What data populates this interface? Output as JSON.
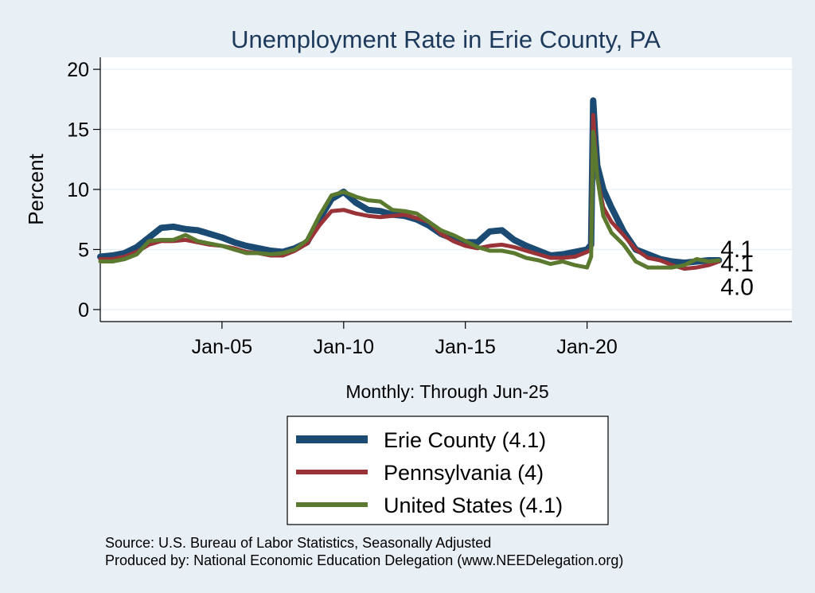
{
  "chart_data": {
    "type": "line",
    "title": "Unemployment Rate in Erie  County, PA",
    "ylabel": "Percent",
    "xlabel": "Monthly: Through Jun-25",
    "ylim": [
      -1,
      21
    ],
    "xlim": [
      "2000-01",
      "2028-06"
    ],
    "yticks": [
      0,
      5,
      10,
      15,
      20
    ],
    "xticks": [
      {
        "date": "2005-01",
        "label": "Jan-05"
      },
      {
        "date": "2010-01",
        "label": "Jan-10"
      },
      {
        "date": "2015-01",
        "label": "Jan-15"
      },
      {
        "date": "2020-01",
        "label": "Jan-20"
      }
    ],
    "grid": true,
    "legend_position": "bottom",
    "series": [
      {
        "name": "Erie  County (4.1)",
        "color": "#1b4a73",
        "end_label": "4.1",
        "points": [
          [
            "2000-01",
            4.4
          ],
          [
            "2000-07",
            4.5
          ],
          [
            "2001-01",
            4.7
          ],
          [
            "2001-07",
            5.2
          ],
          [
            "2002-01",
            6.0
          ],
          [
            "2002-07",
            6.8
          ],
          [
            "2003-01",
            6.9
          ],
          [
            "2003-07",
            6.7
          ],
          [
            "2004-01",
            6.6
          ],
          [
            "2004-07",
            6.3
          ],
          [
            "2005-01",
            6.0
          ],
          [
            "2005-07",
            5.6
          ],
          [
            "2006-01",
            5.3
          ],
          [
            "2006-07",
            5.1
          ],
          [
            "2007-01",
            4.9
          ],
          [
            "2007-07",
            4.8
          ],
          [
            "2008-01",
            5.1
          ],
          [
            "2008-07",
            5.6
          ],
          [
            "2009-01",
            7.5
          ],
          [
            "2009-07",
            9.2
          ],
          [
            "2010-01",
            9.8
          ],
          [
            "2010-07",
            8.9
          ],
          [
            "2011-01",
            8.3
          ],
          [
            "2011-07",
            8.2
          ],
          [
            "2012-01",
            7.9
          ],
          [
            "2012-07",
            7.8
          ],
          [
            "2013-01",
            7.5
          ],
          [
            "2013-07",
            7.0
          ],
          [
            "2014-01",
            6.3
          ],
          [
            "2014-07",
            5.9
          ],
          [
            "2015-01",
            5.6
          ],
          [
            "2015-07",
            5.6
          ],
          [
            "2016-01",
            6.5
          ],
          [
            "2016-07",
            6.6
          ],
          [
            "2017-01",
            5.8
          ],
          [
            "2017-07",
            5.3
          ],
          [
            "2018-01",
            4.9
          ],
          [
            "2018-07",
            4.5
          ],
          [
            "2019-01",
            4.6
          ],
          [
            "2019-07",
            4.8
          ],
          [
            "2020-01",
            5.0
          ],
          [
            "2020-03",
            5.4
          ],
          [
            "2020-04",
            17.4
          ],
          [
            "2020-05",
            14.5
          ],
          [
            "2020-06",
            12.0
          ],
          [
            "2020-09",
            10.0
          ],
          [
            "2021-01",
            8.5
          ],
          [
            "2021-07",
            6.5
          ],
          [
            "2022-01",
            5.0
          ],
          [
            "2022-07",
            4.6
          ],
          [
            "2023-01",
            4.2
          ],
          [
            "2023-07",
            4.0
          ],
          [
            "2024-01",
            3.9
          ],
          [
            "2024-07",
            4.0
          ],
          [
            "2025-01",
            4.1
          ],
          [
            "2025-06",
            4.1
          ]
        ]
      },
      {
        "name": "Pennsylvania (4)",
        "color": "#993338",
        "end_label": "4.0",
        "points": [
          [
            "2000-01",
            4.2
          ],
          [
            "2000-07",
            4.2
          ],
          [
            "2001-01",
            4.4
          ],
          [
            "2001-07",
            4.8
          ],
          [
            "2002-01",
            5.4
          ],
          [
            "2002-07",
            5.7
          ],
          [
            "2003-01",
            5.7
          ],
          [
            "2003-07",
            5.8
          ],
          [
            "2004-01",
            5.6
          ],
          [
            "2004-07",
            5.4
          ],
          [
            "2005-01",
            5.3
          ],
          [
            "2005-07",
            5.1
          ],
          [
            "2006-01",
            4.8
          ],
          [
            "2006-07",
            4.7
          ],
          [
            "2007-01",
            4.5
          ],
          [
            "2007-07",
            4.5
          ],
          [
            "2008-01",
            4.9
          ],
          [
            "2008-07",
            5.5
          ],
          [
            "2009-01",
            7.0
          ],
          [
            "2009-07",
            8.2
          ],
          [
            "2010-01",
            8.3
          ],
          [
            "2010-07",
            8.0
          ],
          [
            "2011-01",
            7.8
          ],
          [
            "2011-07",
            7.7
          ],
          [
            "2012-01",
            7.8
          ],
          [
            "2012-07",
            7.9
          ],
          [
            "2013-01",
            7.6
          ],
          [
            "2013-07",
            7.3
          ],
          [
            "2014-01",
            6.3
          ],
          [
            "2014-07",
            5.7
          ],
          [
            "2015-01",
            5.3
          ],
          [
            "2015-07",
            5.1
          ],
          [
            "2016-01",
            5.3
          ],
          [
            "2016-07",
            5.4
          ],
          [
            "2017-01",
            5.2
          ],
          [
            "2017-07",
            4.9
          ],
          [
            "2018-01",
            4.6
          ],
          [
            "2018-07",
            4.3
          ],
          [
            "2019-01",
            4.3
          ],
          [
            "2019-07",
            4.4
          ],
          [
            "2020-01",
            4.8
          ],
          [
            "2020-03",
            5.0
          ],
          [
            "2020-04",
            16.2
          ],
          [
            "2020-05",
            13.5
          ],
          [
            "2020-06",
            11.0
          ],
          [
            "2020-09",
            8.5
          ],
          [
            "2021-01",
            7.3
          ],
          [
            "2021-07",
            6.2
          ],
          [
            "2022-01",
            5.0
          ],
          [
            "2022-07",
            4.3
          ],
          [
            "2023-01",
            4.1
          ],
          [
            "2023-07",
            3.7
          ],
          [
            "2024-01",
            3.4
          ],
          [
            "2024-07",
            3.5
          ],
          [
            "2025-01",
            3.7
          ],
          [
            "2025-06",
            4.0
          ]
        ]
      },
      {
        "name": "United States (4.1)",
        "color": "#5b7a2f",
        "end_label": "4.1",
        "points": [
          [
            "2000-01",
            4.0
          ],
          [
            "2000-07",
            4.0
          ],
          [
            "2001-01",
            4.2
          ],
          [
            "2001-07",
            4.6
          ],
          [
            "2002-01",
            5.7
          ],
          [
            "2002-07",
            5.8
          ],
          [
            "2003-01",
            5.8
          ],
          [
            "2003-07",
            6.2
          ],
          [
            "2004-01",
            5.7
          ],
          [
            "2004-07",
            5.5
          ],
          [
            "2005-01",
            5.3
          ],
          [
            "2005-07",
            5.0
          ],
          [
            "2006-01",
            4.7
          ],
          [
            "2006-07",
            4.7
          ],
          [
            "2007-01",
            4.6
          ],
          [
            "2007-07",
            4.7
          ],
          [
            "2008-01",
            5.0
          ],
          [
            "2008-07",
            5.8
          ],
          [
            "2009-01",
            7.8
          ],
          [
            "2009-07",
            9.5
          ],
          [
            "2010-01",
            9.8
          ],
          [
            "2010-07",
            9.4
          ],
          [
            "2011-01",
            9.1
          ],
          [
            "2011-07",
            9.0
          ],
          [
            "2012-01",
            8.3
          ],
          [
            "2012-07",
            8.2
          ],
          [
            "2013-01",
            8.0
          ],
          [
            "2013-07",
            7.3
          ],
          [
            "2014-01",
            6.6
          ],
          [
            "2014-07",
            6.2
          ],
          [
            "2015-01",
            5.7
          ],
          [
            "2015-07",
            5.2
          ],
          [
            "2016-01",
            4.9
          ],
          [
            "2016-07",
            4.9
          ],
          [
            "2017-01",
            4.7
          ],
          [
            "2017-07",
            4.3
          ],
          [
            "2018-01",
            4.1
          ],
          [
            "2018-07",
            3.8
          ],
          [
            "2019-01",
            4.0
          ],
          [
            "2019-07",
            3.7
          ],
          [
            "2020-01",
            3.5
          ],
          [
            "2020-03",
            4.4
          ],
          [
            "2020-04",
            14.8
          ],
          [
            "2020-05",
            13.2
          ],
          [
            "2020-06",
            11.0
          ],
          [
            "2020-09",
            7.8
          ],
          [
            "2021-01",
            6.4
          ],
          [
            "2021-07",
            5.4
          ],
          [
            "2022-01",
            4.0
          ],
          [
            "2022-07",
            3.5
          ],
          [
            "2023-01",
            3.5
          ],
          [
            "2023-07",
            3.5
          ],
          [
            "2024-01",
            3.7
          ],
          [
            "2024-07",
            4.2
          ],
          [
            "2025-01",
            4.0
          ],
          [
            "2025-06",
            4.1
          ]
        ]
      }
    ]
  },
  "source_line1": "Source: U.S. Bureau of Labor Statistics, Seasonally Adjusted",
  "source_line2": "Produced by: National Economic Education Delegation (www.NEEDelegation.org)"
}
